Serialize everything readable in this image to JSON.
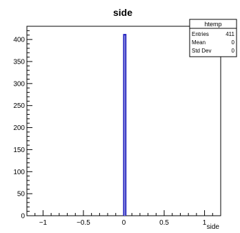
{
  "chart_data": {
    "type": "bar",
    "title": "side",
    "xlabel": "side",
    "ylabel": "",
    "xlim": [
      -1.2,
      1.2
    ],
    "ylim": [
      0,
      430
    ],
    "x_ticks": [
      -1,
      -0.5,
      0,
      0.5,
      1
    ],
    "x_tick_labels": [
      "−1",
      "−0.5",
      "0",
      "0.5",
      "1"
    ],
    "y_ticks": [
      0,
      50,
      100,
      150,
      200,
      250,
      300,
      350,
      400
    ],
    "y_tick_labels": [
      "0",
      "50",
      "100",
      "150",
      "200",
      "250",
      "300",
      "350",
      "400"
    ],
    "bins": [
      {
        "low": 0.0,
        "high": 0.024,
        "value": 411
      }
    ],
    "grid": false,
    "stats_box": {
      "title": "htemp",
      "rows": [
        {
          "label": "Entries",
          "value": "411"
        },
        {
          "label": "Mean",
          "value": "0"
        },
        {
          "label": "Std Dev",
          "value": "0"
        }
      ]
    },
    "colors": {
      "bar_stroke": "#1f1fbf",
      "bar_fill": "#ffffff",
      "axis": "#000000"
    }
  }
}
